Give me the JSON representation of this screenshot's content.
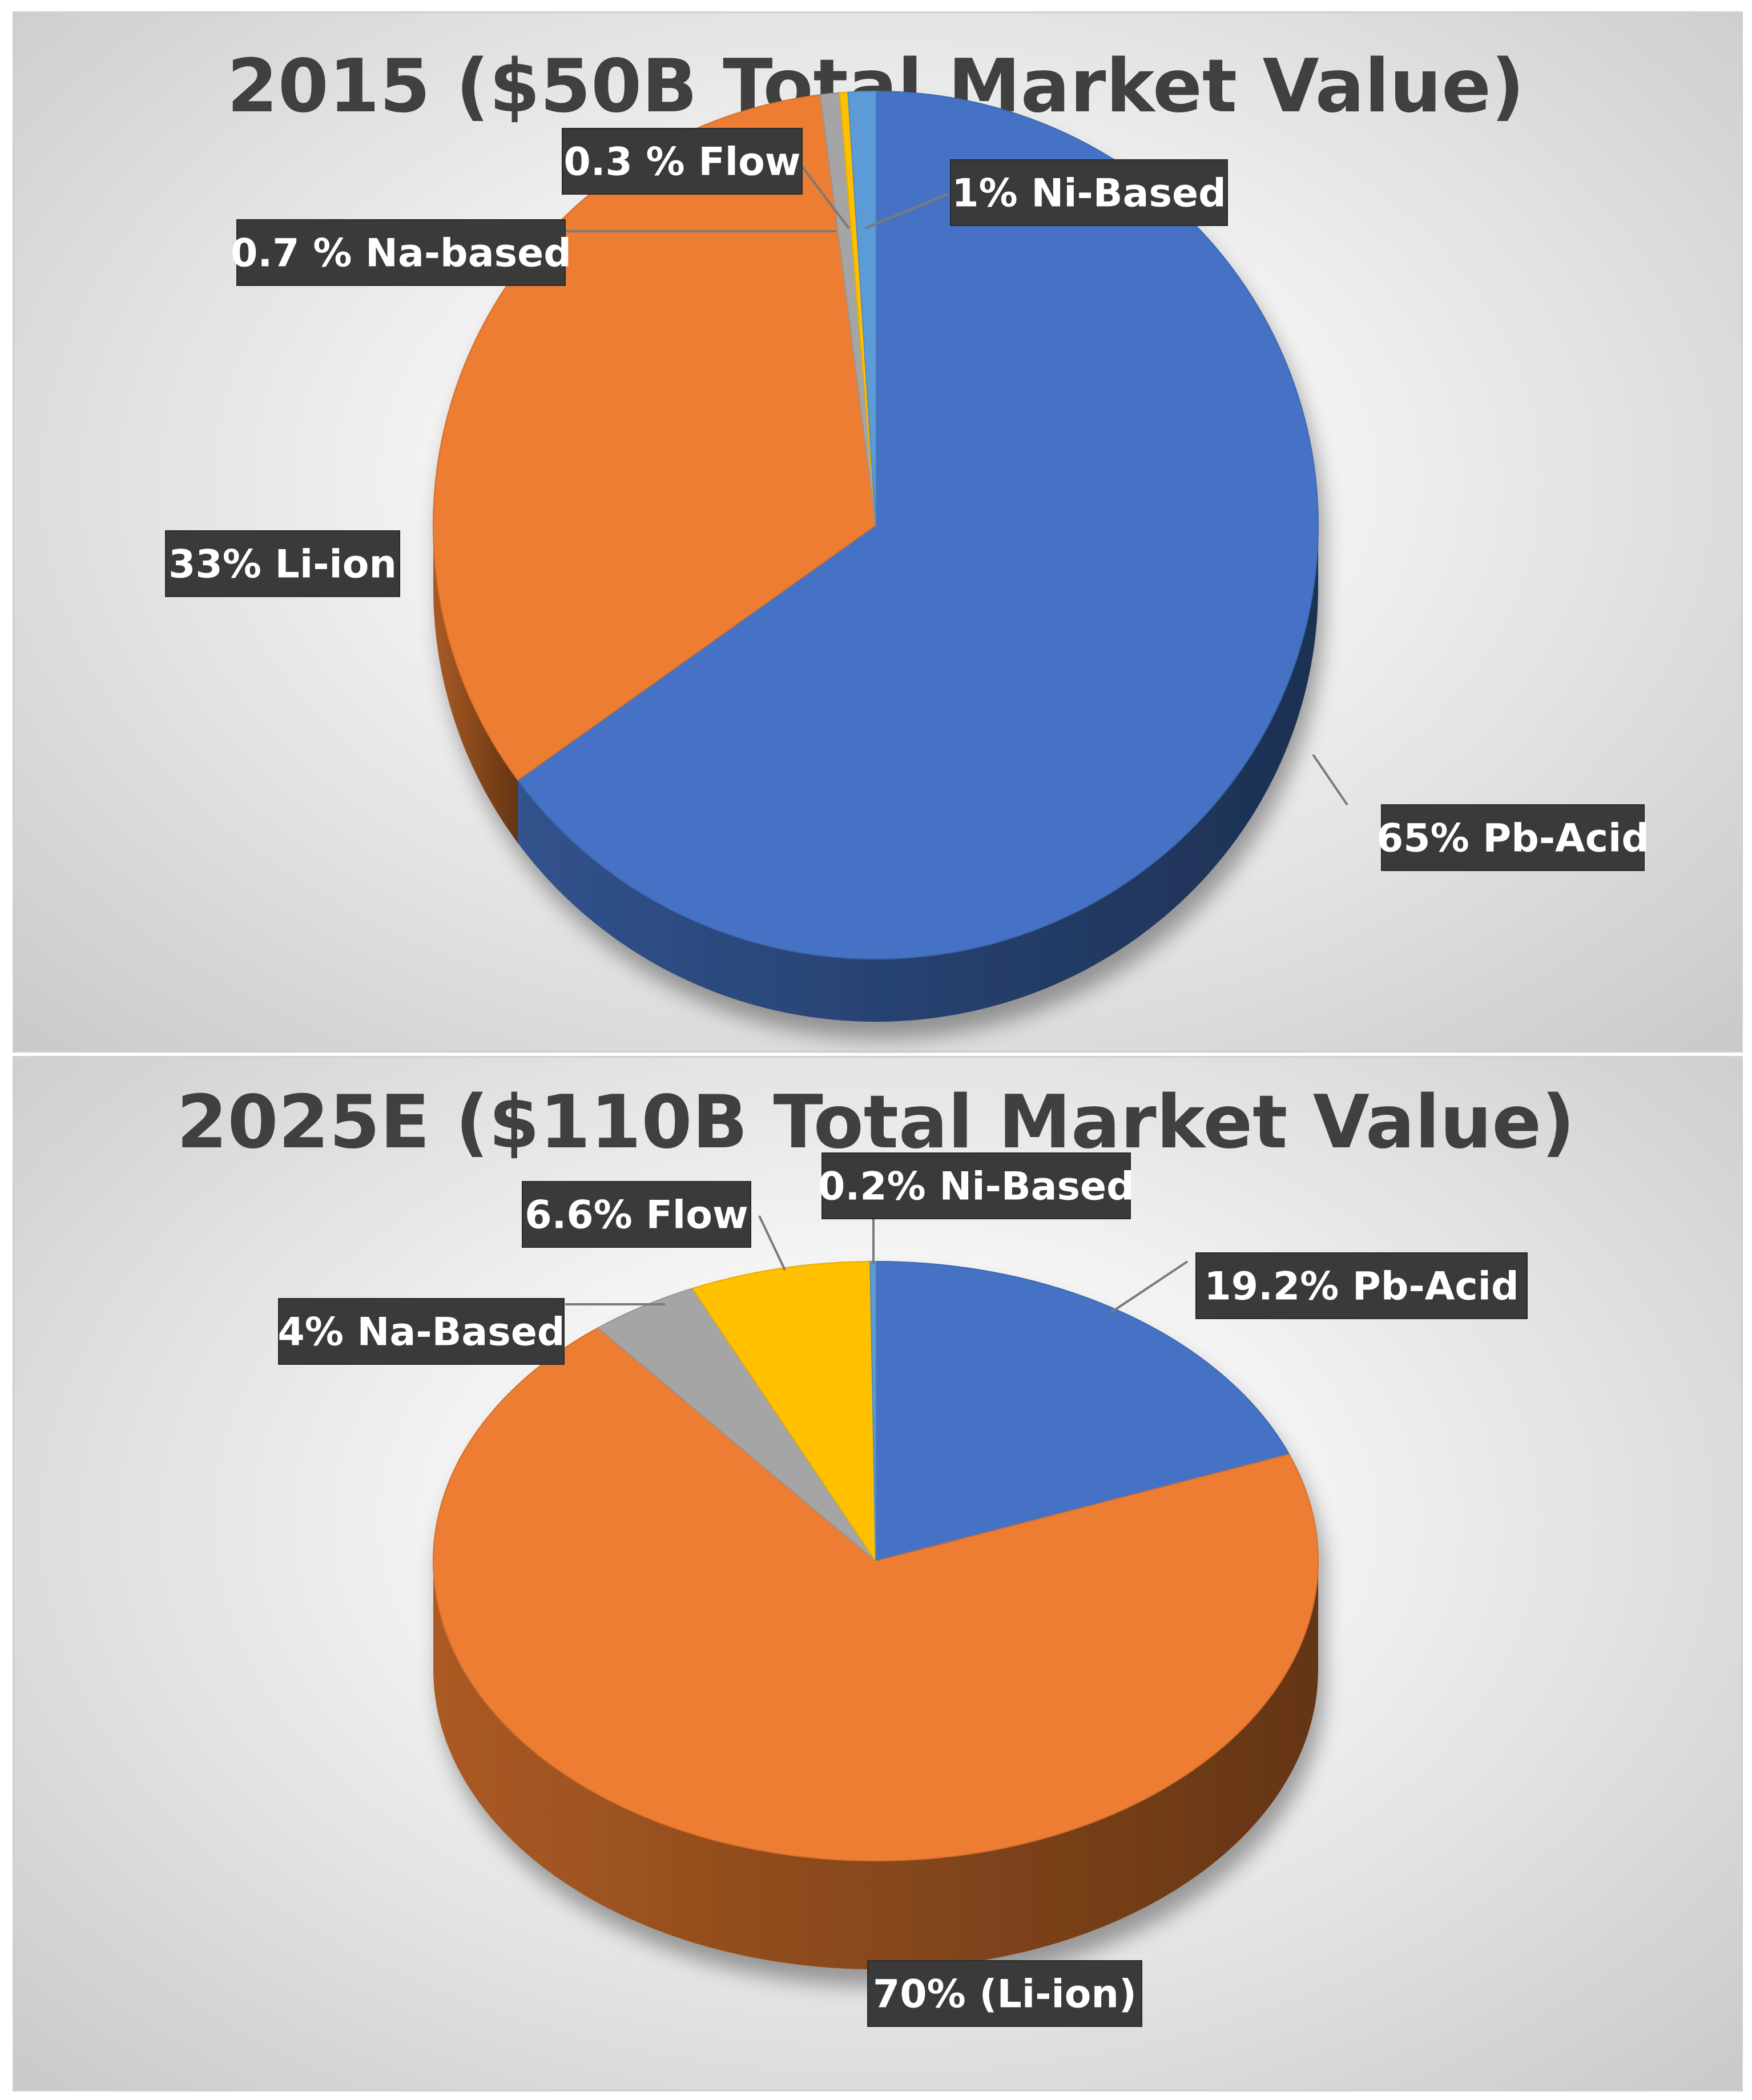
{
  "chart_data": [
    {
      "type": "pie",
      "title": "2015 ($50B Total Market Value)",
      "slices": [
        {
          "name": "Pb-Acid",
          "value": 65,
          "label": "65% Pb-Acid",
          "color": "#4472c4"
        },
        {
          "name": "Li-ion",
          "value": 33,
          "label": "33% Li-ion",
          "color": "#ed7d31"
        },
        {
          "name": "Na-based",
          "value": 0.7,
          "label": "0.7 % Na-based",
          "color": "#a5a5a5"
        },
        {
          "name": "Flow",
          "value": 0.3,
          "label": "0.3 % Flow",
          "color": "#ffc000"
        },
        {
          "name": "Ni-Based",
          "value": 1,
          "label": "1% Ni-Based",
          "color": "#5b9bd5"
        }
      ]
    },
    {
      "type": "pie",
      "title": "2025E ($110B Total Market Value)",
      "slices": [
        {
          "name": "Pb-Acid",
          "value": 19.2,
          "label": "19.2% Pb-Acid",
          "color": "#4472c4"
        },
        {
          "name": "Li-ion",
          "value": 70,
          "label": "70% (Li-ion)",
          "color": "#ed7d31"
        },
        {
          "name": "Na-Based",
          "value": 4,
          "label": "4% Na-Based",
          "color": "#a5a5a5"
        },
        {
          "name": "Flow",
          "value": 6.6,
          "label": "6.6% Flow",
          "color": "#ffc000"
        },
        {
          "name": "Ni-Based",
          "value": 0.2,
          "label": "0.2% Ni-Based",
          "color": "#5b9bd5"
        }
      ]
    }
  ]
}
